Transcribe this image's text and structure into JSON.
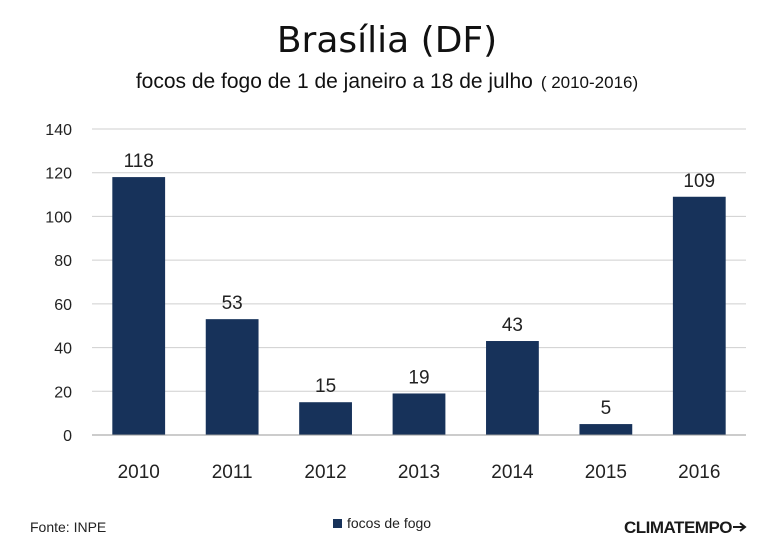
{
  "chart_data": {
    "type": "bar",
    "title": "Brasília  (DF)",
    "subtitle": "focos de fogo de 1 de janeiro a 18 de julho",
    "subtitle_range": "( 2010-2016)",
    "categories": [
      "2010",
      "2011",
      "2012",
      "2013",
      "2014",
      "2015",
      "2016"
    ],
    "series": [
      {
        "name": "focos de fogo",
        "values": [
          118,
          53,
          15,
          19,
          43,
          5,
          109
        ]
      }
    ],
    "yticks": [
      "0",
      "20",
      "40",
      "60",
      "80",
      "100",
      "120",
      "140"
    ],
    "ylim": [
      0,
      140
    ],
    "xlabel": "",
    "ylabel": "",
    "grid": true,
    "legend_position": "bottom-center",
    "bar_color": "#17325a"
  },
  "footer": {
    "source": "Fonte: INPE",
    "brand": "CLIMATEMPO"
  }
}
